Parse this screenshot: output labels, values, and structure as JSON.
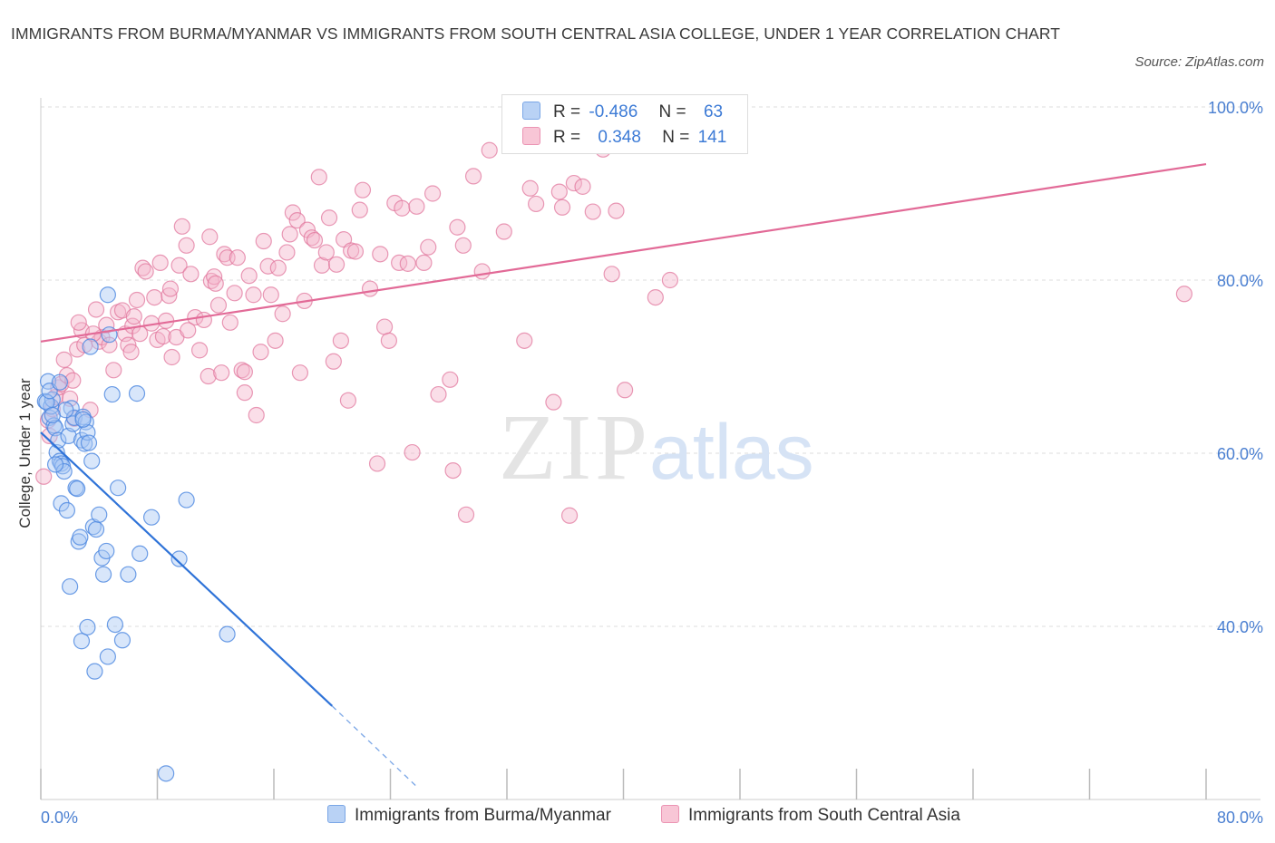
{
  "title": "IMMIGRANTS FROM BURMA/MYANMAR VS IMMIGRANTS FROM SOUTH CENTRAL ASIA COLLEGE, UNDER 1 YEAR CORRELATION CHART",
  "source": "Source: ZipAtlas.com",
  "watermark": {
    "zip": "ZIP",
    "atlas": "atlas"
  },
  "colors": {
    "blue": "#4a86e0",
    "blue_fill": "#a9c8f3",
    "pink": "#e07099",
    "pink_fill": "#f5b6cb",
    "axis_label": "#4a7fd1",
    "grid": "#dddddd"
  },
  "legend": {
    "rows": [
      {
        "r_label": "R =",
        "r_value": "-0.486",
        "n_label": "N =",
        "n_value": "63"
      },
      {
        "r_label": "R =",
        "r_value": "0.348",
        "n_label": "N =",
        "n_value": "141"
      }
    ]
  },
  "bottom_legend": [
    "Immigrants from Burma/Myanmar",
    "Immigrants from South Central Asia"
  ],
  "chart_data": {
    "type": "scatter",
    "ylabel": "College, Under 1 year",
    "xlim": [
      0,
      80
    ],
    "ylim": [
      20,
      100
    ],
    "x_tick_labels": [
      "0.0%",
      "80.0%"
    ],
    "y_ticks": [
      40,
      60,
      80,
      100
    ],
    "y_tick_labels": [
      "40.0%",
      "60.0%",
      "80.0%",
      "100.0%"
    ],
    "grid": true,
    "series": [
      {
        "name": "Immigrants from Burma/Myanmar",
        "trend": {
          "x": [
            0.0,
            20.0
          ],
          "y": [
            62.4,
            30.8
          ],
          "dashed_to": [
            25.8,
            21.5
          ]
        },
        "points": [
          [
            0.3,
            66.0
          ],
          [
            0.5,
            68.3
          ],
          [
            0.6,
            64.1
          ],
          [
            0.7,
            65.4
          ],
          [
            0.8,
            66.2
          ],
          [
            0.4,
            65.9
          ],
          [
            0.9,
            63.2
          ],
          [
            1.0,
            62.9
          ],
          [
            1.1,
            60.1
          ],
          [
            1.2,
            61.5
          ],
          [
            1.3,
            59.1
          ],
          [
            1.4,
            58.8
          ],
          [
            1.5,
            58.5
          ],
          [
            1.6,
            57.9
          ],
          [
            1.4,
            54.2
          ],
          [
            1.8,
            53.4
          ],
          [
            1.9,
            62.0
          ],
          [
            2.1,
            65.2
          ],
          [
            2.2,
            63.4
          ],
          [
            2.3,
            64.1
          ],
          [
            2.4,
            56.0
          ],
          [
            2.5,
            55.9
          ],
          [
            2.6,
            49.8
          ],
          [
            2.7,
            50.3
          ],
          [
            2.8,
            61.5
          ],
          [
            2.9,
            64.2
          ],
          [
            3.0,
            61.1
          ],
          [
            3.1,
            63.6
          ],
          [
            3.2,
            62.4
          ],
          [
            3.3,
            61.2
          ],
          [
            3.5,
            59.1
          ],
          [
            3.6,
            51.5
          ],
          [
            3.8,
            51.2
          ],
          [
            4.0,
            52.9
          ],
          [
            4.2,
            47.9
          ],
          [
            4.3,
            46.0
          ],
          [
            4.5,
            48.7
          ],
          [
            4.6,
            78.3
          ],
          [
            4.7,
            73.7
          ],
          [
            3.4,
            72.3
          ],
          [
            4.9,
            66.8
          ],
          [
            5.1,
            40.2
          ],
          [
            5.3,
            56.0
          ],
          [
            5.6,
            38.4
          ],
          [
            6.0,
            46.0
          ],
          [
            6.6,
            66.9
          ],
          [
            6.8,
            48.4
          ],
          [
            7.6,
            52.6
          ],
          [
            8.6,
            23.0
          ],
          [
            9.5,
            47.8
          ],
          [
            10.0,
            54.6
          ],
          [
            2.0,
            44.6
          ],
          [
            2.8,
            38.3
          ],
          [
            3.2,
            39.9
          ],
          [
            3.7,
            34.8
          ],
          [
            4.6,
            36.5
          ],
          [
            0.6,
            67.2
          ],
          [
            1.7,
            65.0
          ],
          [
            2.9,
            63.9
          ],
          [
            0.8,
            64.4
          ],
          [
            1.0,
            58.7
          ],
          [
            12.8,
            39.1
          ],
          [
            1.3,
            68.2
          ]
        ]
      },
      {
        "name": "Immigrants from South Central Asia",
        "trend": {
          "x": [
            0.0,
            80.0
          ],
          "y": [
            72.9,
            93.4
          ]
        },
        "points": [
          [
            0.2,
            57.3
          ],
          [
            0.5,
            63.8
          ],
          [
            0.6,
            62.0
          ],
          [
            0.8,
            65.1
          ],
          [
            1.0,
            66.5
          ],
          [
            1.2,
            67.6
          ],
          [
            1.4,
            68.0
          ],
          [
            1.6,
            70.8
          ],
          [
            1.8,
            69.0
          ],
          [
            2.0,
            66.3
          ],
          [
            2.2,
            68.4
          ],
          [
            2.3,
            64.0
          ],
          [
            2.5,
            72.0
          ],
          [
            2.8,
            74.2
          ],
          [
            3.0,
            72.5
          ],
          [
            3.4,
            65.0
          ],
          [
            3.8,
            76.6
          ],
          [
            4.0,
            72.9
          ],
          [
            4.2,
            73.4
          ],
          [
            4.5,
            74.8
          ],
          [
            4.7,
            72.5
          ],
          [
            5.0,
            69.6
          ],
          [
            5.3,
            76.3
          ],
          [
            5.6,
            76.5
          ],
          [
            5.8,
            73.8
          ],
          [
            6.0,
            72.5
          ],
          [
            6.2,
            71.7
          ],
          [
            6.3,
            74.7
          ],
          [
            6.6,
            77.7
          ],
          [
            6.8,
            73.8
          ],
          [
            7.0,
            81.4
          ],
          [
            7.2,
            81.0
          ],
          [
            7.6,
            75.0
          ],
          [
            7.8,
            78.0
          ],
          [
            8.0,
            73.1
          ],
          [
            8.2,
            82.0
          ],
          [
            8.4,
            73.5
          ],
          [
            8.6,
            75.3
          ],
          [
            8.8,
            78.2
          ],
          [
            9.0,
            71.1
          ],
          [
            9.3,
            73.4
          ],
          [
            9.5,
            81.7
          ],
          [
            9.7,
            86.2
          ],
          [
            10.0,
            84.0
          ],
          [
            10.3,
            80.7
          ],
          [
            10.6,
            75.7
          ],
          [
            10.9,
            71.9
          ],
          [
            11.2,
            75.4
          ],
          [
            11.5,
            68.9
          ],
          [
            11.7,
            79.9
          ],
          [
            11.9,
            80.4
          ],
          [
            12.2,
            77.1
          ],
          [
            12.4,
            69.3
          ],
          [
            12.6,
            83.0
          ],
          [
            12.8,
            82.6
          ],
          [
            13.0,
            75.1
          ],
          [
            13.3,
            78.5
          ],
          [
            13.5,
            82.6
          ],
          [
            13.8,
            69.6
          ],
          [
            14.0,
            67.0
          ],
          [
            14.3,
            80.5
          ],
          [
            14.6,
            78.3
          ],
          [
            14.8,
            64.4
          ],
          [
            15.1,
            71.7
          ],
          [
            15.3,
            84.5
          ],
          [
            15.6,
            81.6
          ],
          [
            15.8,
            78.3
          ],
          [
            16.1,
            73.0
          ],
          [
            16.3,
            81.4
          ],
          [
            16.6,
            76.1
          ],
          [
            16.9,
            83.2
          ],
          [
            17.1,
            85.3
          ],
          [
            17.3,
            87.8
          ],
          [
            17.6,
            86.9
          ],
          [
            17.8,
            69.3
          ],
          [
            18.1,
            77.6
          ],
          [
            18.3,
            85.8
          ],
          [
            18.6,
            84.9
          ],
          [
            18.8,
            84.6
          ],
          [
            19.1,
            91.9
          ],
          [
            19.3,
            81.7
          ],
          [
            19.6,
            83.2
          ],
          [
            19.8,
            87.2
          ],
          [
            20.1,
            70.6
          ],
          [
            20.3,
            81.8
          ],
          [
            20.6,
            73.0
          ],
          [
            20.8,
            84.7
          ],
          [
            21.1,
            66.1
          ],
          [
            21.3,
            83.4
          ],
          [
            21.6,
            83.3
          ],
          [
            21.9,
            88.1
          ],
          [
            22.1,
            90.4
          ],
          [
            22.6,
            79.0
          ],
          [
            23.1,
            58.8
          ],
          [
            23.3,
            83.0
          ],
          [
            23.6,
            74.6
          ],
          [
            23.9,
            73.0
          ],
          [
            24.3,
            88.9
          ],
          [
            24.6,
            82.0
          ],
          [
            24.8,
            88.3
          ],
          [
            25.2,
            81.9
          ],
          [
            25.5,
            60.1
          ],
          [
            25.8,
            88.5
          ],
          [
            26.3,
            82.0
          ],
          [
            26.6,
            83.8
          ],
          [
            26.9,
            90.0
          ],
          [
            27.3,
            66.8
          ],
          [
            28.1,
            68.5
          ],
          [
            28.3,
            58.0
          ],
          [
            28.6,
            86.1
          ],
          [
            29.0,
            84.0
          ],
          [
            29.2,
            52.9
          ],
          [
            29.7,
            92.0
          ],
          [
            30.3,
            81.0
          ],
          [
            30.8,
            95.0
          ],
          [
            31.8,
            85.6
          ],
          [
            33.2,
            73.0
          ],
          [
            33.6,
            90.6
          ],
          [
            34.0,
            88.8
          ],
          [
            35.2,
            65.9
          ],
          [
            35.6,
            90.2
          ],
          [
            35.8,
            88.4
          ],
          [
            36.3,
            52.8
          ],
          [
            36.6,
            91.2
          ],
          [
            37.2,
            90.8
          ],
          [
            37.9,
            87.9
          ],
          [
            38.6,
            95.1
          ],
          [
            39.2,
            80.7
          ],
          [
            39.5,
            88.0
          ],
          [
            40.1,
            67.3
          ],
          [
            42.2,
            78.0
          ],
          [
            43.2,
            80.0
          ],
          [
            78.5,
            78.4
          ],
          [
            2.6,
            75.1
          ],
          [
            11.6,
            85.0
          ],
          [
            3.6,
            73.8
          ],
          [
            6.4,
            75.8
          ],
          [
            8.9,
            79.0
          ],
          [
            10.1,
            74.2
          ],
          [
            12.0,
            79.6
          ],
          [
            14.0,
            69.4
          ]
        ]
      }
    ]
  }
}
